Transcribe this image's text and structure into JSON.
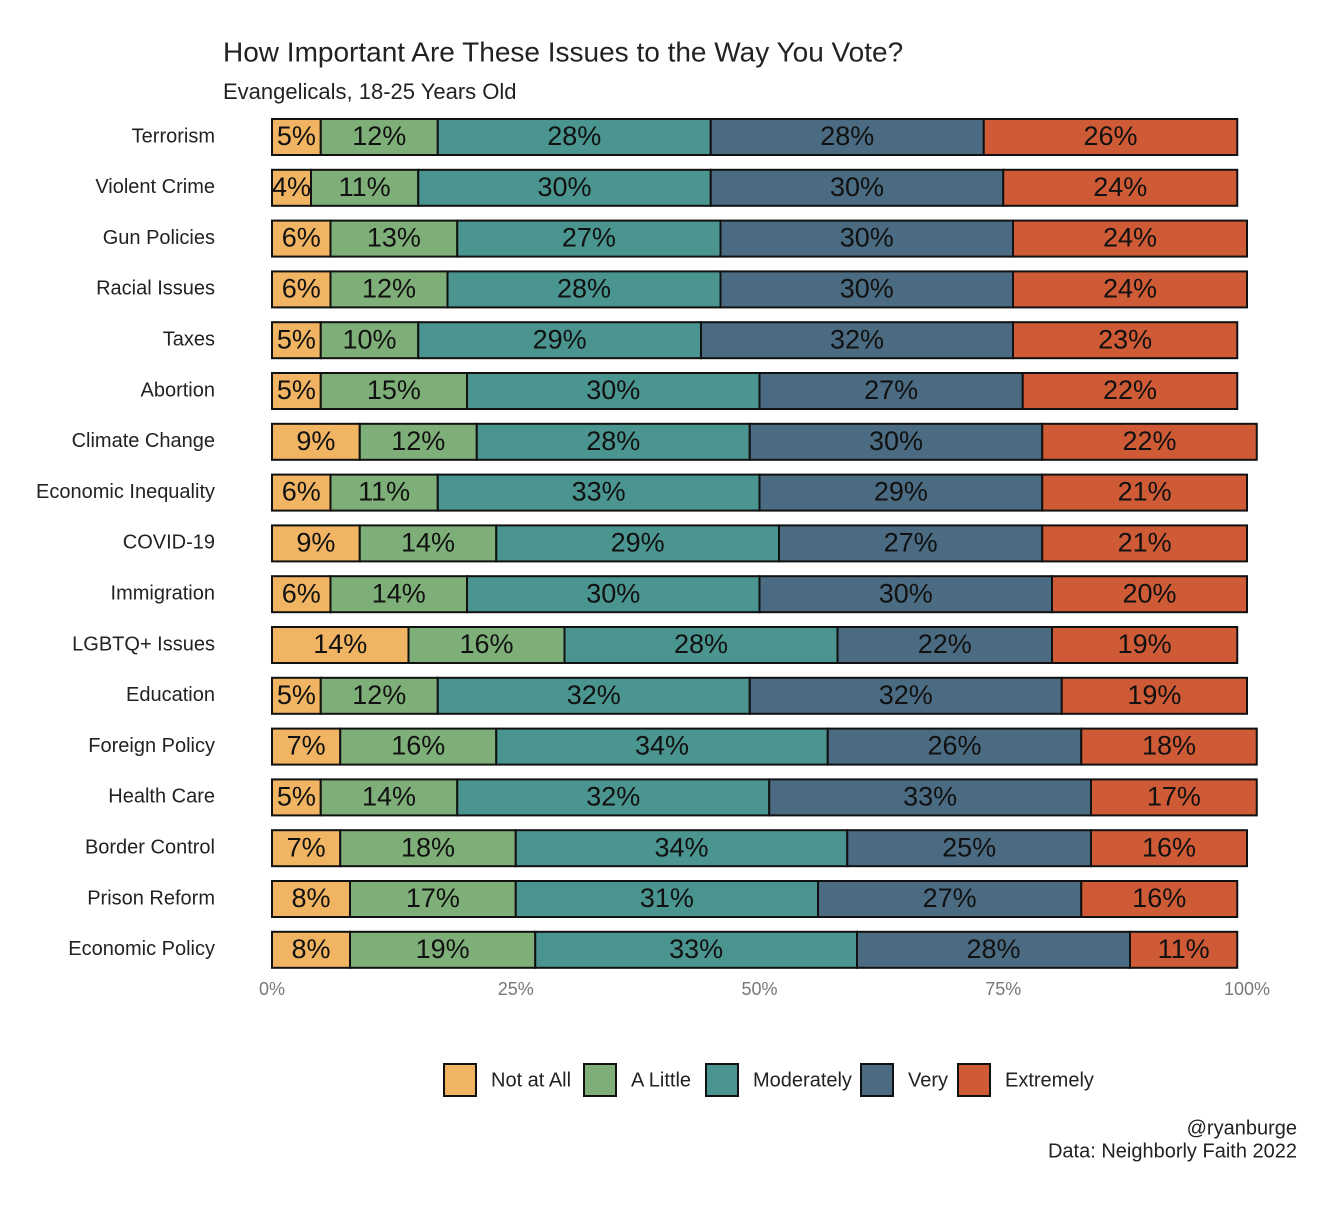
{
  "chart_data": {
    "type": "bar",
    "orientation": "horizontal",
    "stacked": true,
    "title": "How Important Are These Issues to the Way You Vote?",
    "subtitle": "Evangelicals, 18-25 Years Old",
    "categories": [
      "Terrorism",
      "Violent Crime",
      "Gun Policies",
      "Racial Issues",
      "Taxes",
      "Abortion",
      "Climate Change",
      "Economic Inequality",
      "COVID-19",
      "Immigration",
      "LGBTQ+ Issues",
      "Education",
      "Foreign Policy",
      "Health Care",
      "Border Control",
      "Prison Reform",
      "Economic Policy"
    ],
    "series": [
      {
        "name": "Not at All",
        "color": "#F0B462",
        "values": [
          5,
          4,
          6,
          6,
          5,
          5,
          9,
          6,
          9,
          6,
          14,
          5,
          7,
          5,
          7,
          8,
          8
        ],
        "value_labels": [
          "5%",
          "4%",
          "6%",
          "6%",
          "5%",
          "5%",
          "9%",
          "6%",
          "9%",
          "6%",
          "14%",
          "5%",
          "7%",
          "5%",
          "7%",
          "8%",
          "8%"
        ]
      },
      {
        "name": "A Little",
        "color": "#7FAF78",
        "values": [
          12,
          11,
          13,
          12,
          10,
          15,
          12,
          11,
          14,
          14,
          16,
          12,
          16,
          14,
          18,
          17,
          19
        ],
        "value_labels": [
          "12%",
          "11%",
          "13%",
          "12%",
          "10%",
          "15%",
          "12%",
          "11%",
          "14%",
          "14%",
          "16%",
          "12%",
          "16%",
          "14%",
          "18%",
          "17%",
          "19%"
        ]
      },
      {
        "name": "Moderately",
        "color": "#4A958F",
        "values": [
          28,
          30,
          27,
          28,
          29,
          30,
          28,
          33,
          29,
          30,
          28,
          32,
          34,
          32,
          34,
          31,
          33
        ],
        "value_labels": [
          "28%",
          "30%",
          "27%",
          "28%",
          "29%",
          "30%",
          "28%",
          "33%",
          "29%",
          "30%",
          "28%",
          "32%",
          "34%",
          "32%",
          "34%",
          "31%",
          "33%"
        ]
      },
      {
        "name": "Very",
        "color": "#4A6B82",
        "values": [
          28,
          30,
          30,
          30,
          32,
          27,
          30,
          29,
          27,
          30,
          22,
          32,
          26,
          33,
          25,
          27,
          28
        ],
        "value_labels": [
          "28%",
          "30%",
          "30%",
          "30%",
          "32%",
          "27%",
          "30%",
          "29%",
          "27%",
          "30%",
          "22%",
          "32%",
          "26%",
          "33%",
          "25%",
          "27%",
          "28%"
        ]
      },
      {
        "name": "Extremely",
        "color": "#CF5A36",
        "values": [
          26,
          24,
          24,
          24,
          23,
          22,
          22,
          21,
          21,
          20,
          19,
          19,
          18,
          17,
          16,
          16,
          11
        ],
        "value_labels": [
          "26%",
          "24%",
          "24%",
          "24%",
          "23%",
          "22%",
          "22%",
          "21%",
          "21%",
          "20%",
          "19%",
          "19%",
          "18%",
          "17%",
          "16%",
          "16%",
          "11%"
        ]
      }
    ],
    "xlim": [
      0,
      100
    ],
    "xticks": [
      {
        "value": 0,
        "label": "0%"
      },
      {
        "value": 25,
        "label": "25%"
      },
      {
        "value": 50,
        "label": "50%"
      },
      {
        "value": 75,
        "label": "75%"
      },
      {
        "value": 100,
        "label": "100%"
      }
    ],
    "legend": "bottom",
    "caption": [
      "@ryanburge",
      "Data: Neighborly Faith 2022"
    ]
  }
}
